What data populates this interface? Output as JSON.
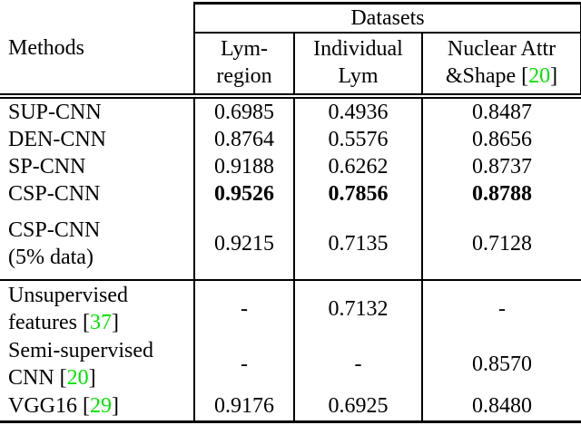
{
  "colors": {
    "citation_green": "#00e400",
    "text": "#000000",
    "background": "#ffffff",
    "rule": "#000000"
  },
  "table": {
    "header": {
      "methods_label": "Methods",
      "datasets_label": "Datasets",
      "columns": [
        {
          "id": "lym-region",
          "segments": [
            {
              "t": "Lym-"
            },
            {
              "br": true
            },
            {
              "t": "region"
            }
          ]
        },
        {
          "id": "individual-lym",
          "segments": [
            {
              "t": "Individual"
            },
            {
              "br": true
            },
            {
              "t": "Lym"
            }
          ]
        },
        {
          "id": "nuclear-attr-shape",
          "segments": [
            {
              "t": "Nuclear Attr"
            },
            {
              "br": true
            },
            {
              "t": "&Shape ["
            },
            {
              "t": "20",
              "c": "ref"
            },
            {
              "t": "]"
            }
          ]
        }
      ]
    },
    "rows": [
      {
        "method": [
          {
            "t": "SUP-CNN"
          }
        ],
        "values": [
          "0.6985",
          "0.4936",
          "0.8487"
        ],
        "bold_values": false,
        "group_start": false
      },
      {
        "method": [
          {
            "t": "DEN-CNN"
          }
        ],
        "values": [
          "0.8764",
          "0.5576",
          "0.8656"
        ],
        "bold_values": false,
        "group_start": false
      },
      {
        "method": [
          {
            "t": "SP-CNN"
          }
        ],
        "values": [
          "0.9188",
          "0.6262",
          "0.8737"
        ],
        "bold_values": false,
        "group_start": false
      },
      {
        "method": [
          {
            "t": "CSP-CNN"
          }
        ],
        "values": [
          "0.9526",
          "0.7856",
          "0.8788"
        ],
        "bold_values": true,
        "group_start": false
      },
      {
        "method": [
          {
            "t": "CSP-CNN"
          },
          {
            "br": true
          },
          {
            "t": "(5% data)"
          }
        ],
        "values": [
          "0.9215",
          "0.7135",
          "0.7128"
        ],
        "bold_values": false,
        "group_start": false
      },
      {
        "method": [
          {
            "t": "Unsupervised"
          },
          {
            "br": true
          },
          {
            "t": "features ["
          },
          {
            "t": "37",
            "c": "ref"
          },
          {
            "t": "]"
          }
        ],
        "values": [
          "-",
          "0.7132",
          "-"
        ],
        "bold_values": false,
        "group_start": true
      },
      {
        "method": [
          {
            "t": "Semi-supervised"
          },
          {
            "br": true
          },
          {
            "t": "CNN ["
          },
          {
            "t": "20",
            "c": "ref"
          },
          {
            "t": "]"
          }
        ],
        "values": [
          "-",
          "-",
          "0.8570"
        ],
        "bold_values": false,
        "group_start": false
      },
      {
        "method": [
          {
            "t": "VGG16 ["
          },
          {
            "t": "29",
            "c": "ref"
          },
          {
            "t": "]"
          }
        ],
        "values": [
          "0.9176",
          "0.6925",
          "0.8480"
        ],
        "bold_values": false,
        "group_start": false
      }
    ]
  }
}
